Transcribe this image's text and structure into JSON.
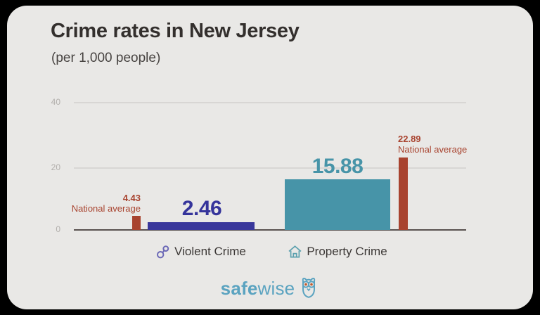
{
  "chart_data": {
    "type": "bar",
    "title": "Crime rates in New Jersey",
    "subtitle": "(per 1,000 people)",
    "categories": [
      "Violent Crime",
      "Property Crime"
    ],
    "series": [
      {
        "name": "New Jersey",
        "values": [
          2.46,
          15.88
        ]
      },
      {
        "name": "National average",
        "values": [
          4.43,
          22.89
        ]
      }
    ],
    "ylim": [
      0,
      40
    ],
    "yticks": [
      "0",
      "20",
      "40"
    ],
    "grid": "horizontal gridlines at 20 and 40",
    "legend": "inline annotations next to national-average bars",
    "colors": {
      "violent_bar": "#39379b",
      "property_bar": "#4794a8",
      "national_average_bar": "#a8432f",
      "background": "#e9e8e6"
    }
  },
  "annotations": {
    "national_average_label": "National average"
  },
  "icons": {
    "violent_crime": "handcuffs-icon",
    "property_crime": "house-icon",
    "logo": "owl-icon"
  },
  "logo": {
    "brand_bold": "safe",
    "brand_regular": "wise"
  }
}
